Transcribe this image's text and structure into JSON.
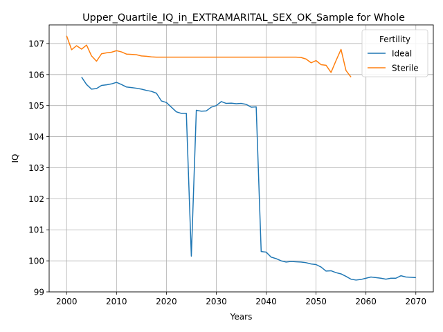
{
  "chart_data": {
    "type": "line",
    "title": "Upper_Quartile_IQ_in_EXTRAMARITAL_SEX_OK_Sample for Whole",
    "xlabel": "Years",
    "ylabel": "IQ",
    "xlim": [
      1996.5,
      2073.5
    ],
    "ylim": [
      99.0,
      107.6
    ],
    "xticks": [
      2000,
      2010,
      2020,
      2030,
      2040,
      2050,
      2060,
      2070
    ],
    "yticks": [
      99,
      100,
      101,
      102,
      103,
      104,
      105,
      106,
      107
    ],
    "grid": true,
    "legend": {
      "title": "Fertility",
      "position": "upper right"
    },
    "series": [
      {
        "name": "Ideal",
        "color": "#1f77b4",
        "x": [
          2003,
          2004,
          2005,
          2006,
          2007,
          2008,
          2009,
          2010,
          2011,
          2012,
          2013,
          2014,
          2015,
          2016,
          2017,
          2018,
          2019,
          2020,
          2021,
          2022,
          2023,
          2024,
          2025,
          2026,
          2027,
          2028,
          2029,
          2030,
          2031,
          2032,
          2033,
          2034,
          2035,
          2036,
          2037,
          2038,
          2039,
          2040,
          2041,
          2042,
          2043,
          2044,
          2045,
          2046,
          2047,
          2048,
          2049,
          2050,
          2051,
          2052,
          2053,
          2054,
          2055,
          2056,
          2057,
          2058,
          2059,
          2060,
          2061,
          2062,
          2063,
          2064,
          2065,
          2066,
          2067,
          2068,
          2069,
          2070
        ],
        "values": [
          105.92,
          105.68,
          105.53,
          105.55,
          105.65,
          105.67,
          105.7,
          105.75,
          105.68,
          105.6,
          105.58,
          105.56,
          105.53,
          105.49,
          105.46,
          105.4,
          105.15,
          105.1,
          104.95,
          104.8,
          104.75,
          104.75,
          100.15,
          104.85,
          104.82,
          104.83,
          104.95,
          105.0,
          105.13,
          105.07,
          105.08,
          105.06,
          105.07,
          105.04,
          104.95,
          104.96,
          100.3,
          100.28,
          100.12,
          100.07,
          100.0,
          99.96,
          99.98,
          99.97,
          99.96,
          99.94,
          99.9,
          99.88,
          99.8,
          99.67,
          99.68,
          99.62,
          99.58,
          99.5,
          99.41,
          99.38,
          99.4,
          99.44,
          99.48,
          99.46,
          99.44,
          99.41,
          99.44,
          99.44,
          99.52,
          99.48,
          99.47,
          99.46
        ]
      },
      {
        "name": "Sterile",
        "color": "#ff7f0e",
        "x": [
          2000,
          2001,
          2002,
          2003,
          2004,
          2005,
          2006,
          2007,
          2008,
          2009,
          2010,
          2011,
          2012,
          2013,
          2014,
          2015,
          2016,
          2017,
          2018,
          2019,
          2020,
          2021,
          2022,
          2023,
          2024,
          2025,
          2026,
          2027,
          2028,
          2029,
          2030,
          2031,
          2032,
          2033,
          2034,
          2035,
          2036,
          2037,
          2038,
          2039,
          2040,
          2041,
          2042,
          2043,
          2044,
          2045,
          2046,
          2047,
          2048,
          2049,
          2050,
          2051,
          2052,
          2053,
          2054,
          2055,
          2056,
          2057
        ],
        "values": [
          107.25,
          106.8,
          106.93,
          106.82,
          106.95,
          106.6,
          106.43,
          106.67,
          106.7,
          106.72,
          106.77,
          106.73,
          106.66,
          106.65,
          106.64,
          106.6,
          106.59,
          106.57,
          106.56,
          106.56,
          106.56,
          106.56,
          106.56,
          106.56,
          106.56,
          106.56,
          106.56,
          106.56,
          106.56,
          106.56,
          106.56,
          106.56,
          106.56,
          106.56,
          106.56,
          106.56,
          106.56,
          106.56,
          106.56,
          106.56,
          106.56,
          106.56,
          106.56,
          106.56,
          106.56,
          106.56,
          106.56,
          106.55,
          106.5,
          106.38,
          106.45,
          106.32,
          106.3,
          106.07,
          106.45,
          106.81,
          106.13,
          105.92
        ]
      }
    ]
  }
}
